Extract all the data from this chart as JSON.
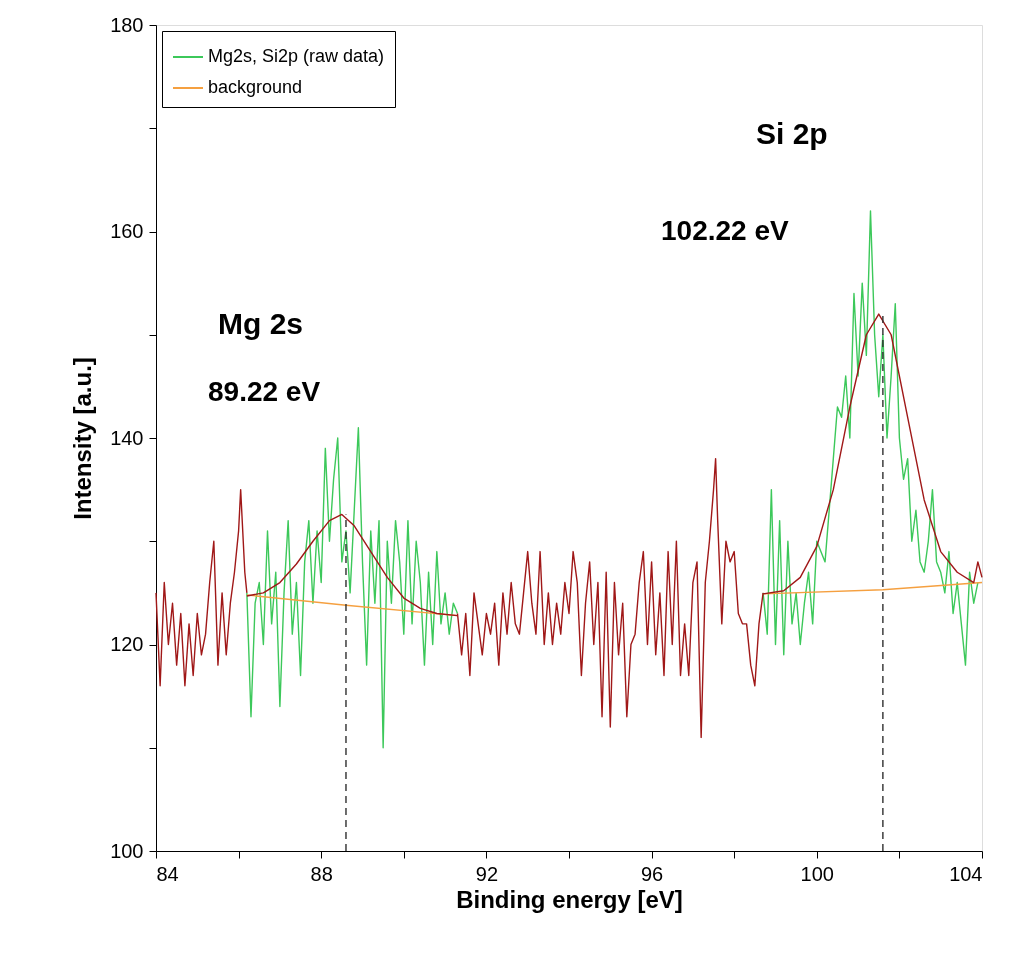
{
  "chart_data": {
    "type": "line",
    "xlabel": "Binding energy [eV]",
    "ylabel": "Intensity [a.u.]",
    "xlim": [
      84,
      104
    ],
    "ylim": [
      100,
      180
    ],
    "xticks": [
      84,
      {
        "value": 86,
        "label": null
      },
      88,
      {
        "value": 90,
        "label": null
      },
      92,
      {
        "value": 94,
        "label": null
      },
      96,
      {
        "value": 98,
        "label": null
      },
      100,
      {
        "value": 102,
        "label": null
      },
      104
    ],
    "yticks": [
      100,
      {
        "value": 110,
        "label": null
      },
      120,
      {
        "value": 130,
        "label": null
      },
      140,
      {
        "value": 150,
        "label": null
      },
      160,
      {
        "value": 170,
        "label": null
      },
      180
    ],
    "grid": false,
    "legend": "top left",
    "series": [
      {
        "name": "Mg2s, Si2p (raw data)",
        "color": "#3cc85a",
        "x": [
          86.2,
          86.3,
          86.4,
          86.5,
          86.6,
          86.7,
          86.8,
          86.9,
          87.0,
          87.1,
          87.2,
          87.3,
          87.4,
          87.5,
          87.6,
          87.7,
          87.8,
          87.9,
          88.0,
          88.1,
          88.2,
          88.3,
          88.4,
          88.5,
          88.6,
          88.7,
          88.8,
          88.9,
          89.0,
          89.1,
          89.2,
          89.3,
          89.4,
          89.5,
          89.6,
          89.7,
          89.8,
          89.9,
          90.0,
          90.1,
          90.2,
          90.3,
          90.4,
          90.5,
          90.6,
          90.7,
          90.8,
          90.9,
          91.0,
          91.1,
          91.2,
          91.3,
          null,
          98.7,
          98.8,
          98.9,
          99.0,
          99.1,
          99.2,
          99.3,
          99.4,
          99.5,
          99.6,
          99.7,
          99.8,
          99.9,
          100.0,
          100.2,
          100.4,
          100.5,
          100.6,
          100.7,
          100.8,
          100.9,
          101.0,
          101.1,
          101.2,
          101.3,
          101.4,
          101.5,
          101.6,
          101.7,
          101.8,
          101.9,
          102.0,
          102.1,
          102.2,
          102.3,
          102.4,
          102.5,
          102.6,
          102.7,
          102.8,
          102.9,
          103.0,
          103.1,
          103.2,
          103.3,
          103.4,
          103.5,
          103.6,
          103.7,
          103.8,
          103.9
        ],
        "values": [
          125,
          113,
          124,
          126,
          120,
          131,
          122,
          127,
          114,
          125,
          132,
          121,
          126,
          117,
          128,
          132,
          124,
          131,
          126,
          139,
          130,
          136,
          140,
          128,
          131,
          125,
          133,
          141,
          128,
          118,
          131,
          124,
          132,
          110,
          130,
          124,
          132,
          128,
          121,
          132,
          122,
          130,
          126,
          118,
          127,
          120,
          129,
          122,
          125,
          121,
          124,
          123,
          null,
          125,
          121,
          135,
          120,
          132,
          119,
          130,
          122,
          125,
          120,
          124,
          127,
          122,
          130,
          128,
          138,
          143,
          142,
          146,
          140,
          154,
          146,
          155,
          148,
          162,
          150,
          144,
          150,
          140,
          146,
          153,
          140,
          136,
          138,
          130,
          133,
          128,
          127,
          130,
          135,
          128,
          127,
          125,
          129,
          123,
          126,
          122,
          118,
          127,
          124,
          126
        ]
      },
      {
        "name": "background",
        "color": "#f5a040",
        "x": [
          86.2,
          88.6,
          91.3,
          null,
          98.7,
          101.6,
          104.0
        ],
        "values": [
          124.8,
          123.8,
          122.8,
          null,
          124.9,
          125.3,
          126.0
        ]
      },
      {
        "color": "#a01818",
        "x": [
          84.0,
          84.1,
          84.2,
          84.3,
          84.4,
          84.5,
          84.6,
          84.7,
          84.8,
          84.9,
          85.0,
          85.1,
          85.2,
          85.3,
          85.4,
          85.5,
          85.6,
          85.7,
          85.8,
          85.9,
          86.0,
          86.05,
          86.15,
          86.2
        ],
        "values": [
          125,
          116,
          126,
          120,
          124,
          118,
          123,
          116,
          122,
          117,
          123,
          119,
          121,
          126,
          130,
          118,
          125,
          119,
          124,
          127,
          131,
          135,
          127,
          125
        ]
      },
      {
        "color": "#a01818",
        "x": [
          91.3,
          91.4,
          91.5,
          91.6,
          91.7,
          91.8,
          91.9,
          92.0,
          92.1,
          92.2,
          92.3,
          92.4,
          92.5,
          92.6,
          92.7,
          92.8,
          92.9,
          93.0,
          93.1,
          93.2,
          93.3,
          93.4,
          93.5,
          93.6,
          93.7,
          93.8,
          93.9,
          94.0,
          94.1,
          94.2,
          94.3,
          94.4,
          94.5,
          94.6,
          94.7,
          94.8,
          94.9,
          95.0,
          95.1,
          95.2,
          95.3,
          95.4,
          95.5,
          95.6,
          95.7,
          95.8,
          95.9,
          96.0,
          96.1,
          96.2,
          96.3,
          96.4,
          96.5,
          96.6,
          96.7,
          96.8,
          96.9,
          97.0,
          97.1,
          97.2,
          97.3,
          97.4,
          97.5,
          97.55,
          97.6,
          97.7,
          97.8,
          97.9,
          98.0,
          98.1,
          98.2,
          98.3,
          98.4,
          98.5,
          98.6,
          98.7
        ],
        "values": [
          123,
          119,
          123,
          117,
          125,
          122,
          119,
          123,
          121,
          124,
          118,
          125,
          121,
          126,
          122,
          121,
          125,
          129,
          124,
          121,
          129,
          120,
          125,
          120,
          124,
          121,
          126,
          123,
          129,
          126,
          117,
          124,
          128,
          120,
          126,
          113,
          127,
          112,
          126,
          119,
          124,
          113,
          120,
          121,
          126,
          129,
          120,
          128,
          119,
          125,
          117,
          129,
          120,
          130,
          117,
          122,
          117,
          126,
          128,
          111,
          126,
          130,
          135,
          138,
          132,
          122,
          130,
          128,
          129,
          123,
          122,
          122,
          118,
          116,
          122,
          125
        ]
      },
      {
        "color": "#a01818",
        "x": [
          86.2,
          86.6,
          87.0,
          87.4,
          87.8,
          88.2,
          88.5,
          88.8,
          89.2,
          89.6,
          90.0,
          90.4,
          90.8,
          91.3,
          null,
          98.7,
          99.2,
          99.6,
          100.0,
          100.4,
          100.8,
          101.2,
          101.5,
          101.8,
          102.2,
          102.6,
          103.0,
          103.4,
          103.8,
          103.9,
          104.0
        ],
        "values": [
          124.7,
          125,
          126,
          127.8,
          130,
          132,
          132.6,
          131.5,
          129,
          126.5,
          124.5,
          123.5,
          123,
          122.8,
          null,
          124.9,
          125.2,
          126.5,
          129.5,
          135,
          143,
          150,
          152,
          150,
          142,
          134,
          129,
          127,
          126,
          128,
          126.5
        ]
      },
      {
        "color": "#303030",
        "line_style": "dashed",
        "x": [
          88.6,
          88.6,
          null,
          101.6,
          101.6
        ],
        "values": [
          100,
          132.6,
          null,
          100,
          152
        ]
      }
    ],
    "annotations": [
      "Mg 2s",
      "89.22 eV",
      "Si 2p",
      "102.22 eV"
    ]
  }
}
